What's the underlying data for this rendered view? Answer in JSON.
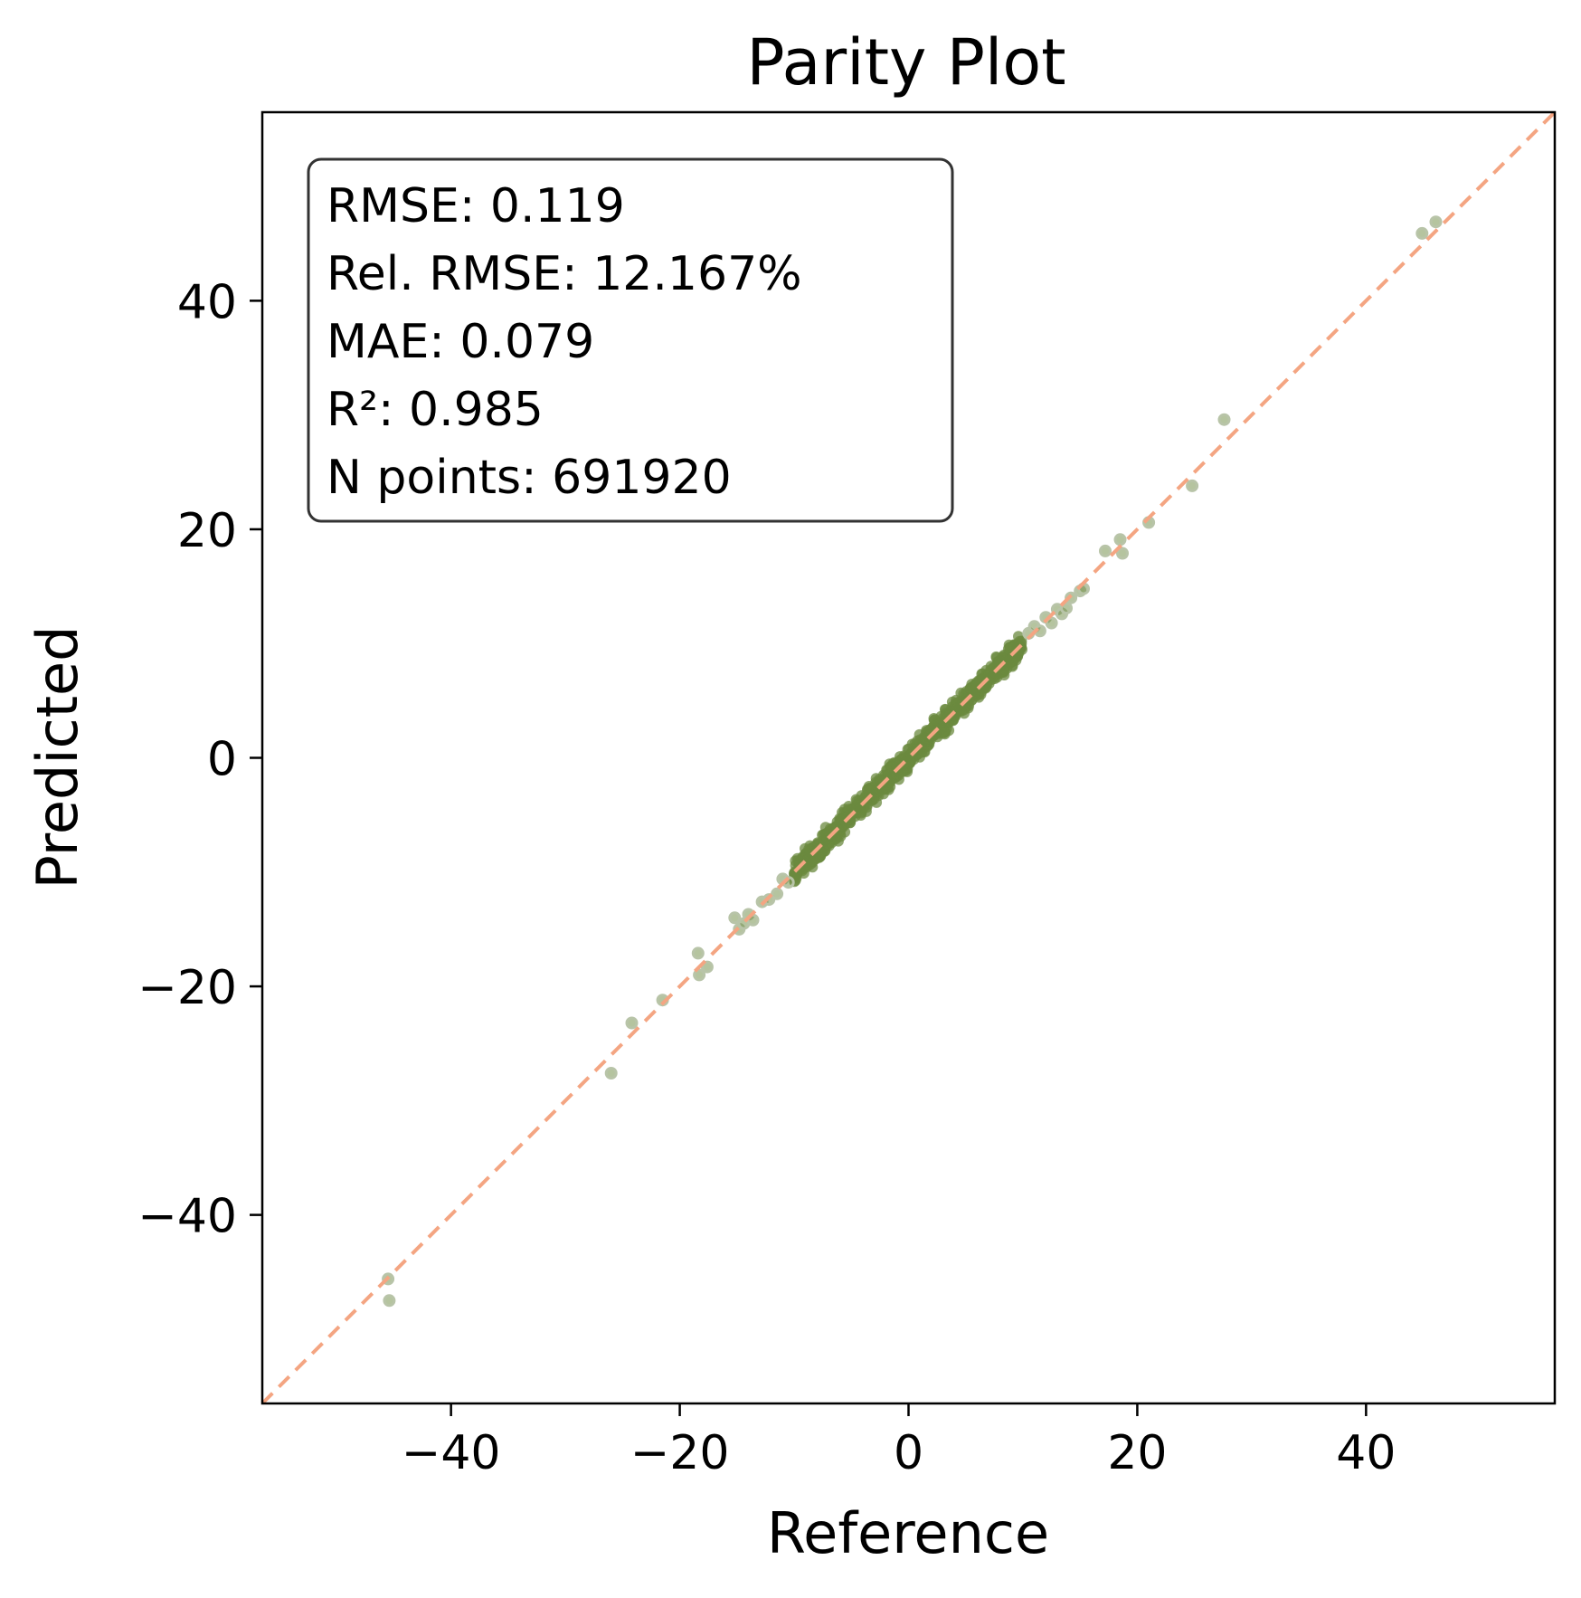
{
  "chart_data": {
    "type": "scatter",
    "title": "Parity Plot",
    "xlabel": "Reference",
    "ylabel": "Predicted",
    "xlim": [
      -56.5,
      56.5
    ],
    "ylim": [
      -56.5,
      56.5
    ],
    "xticks": [
      -40,
      -20,
      0,
      20,
      40
    ],
    "yticks": [
      -40,
      -20,
      0,
      20,
      40
    ],
    "xtick_labels": [
      "−40",
      "−20",
      "0",
      "20",
      "40"
    ],
    "ytick_labels": [
      "−40",
      "−20",
      "0",
      "20",
      "40"
    ],
    "grid": false,
    "stats_box_position": "top-left",
    "stats_lines": [
      "RMSE: 0.119",
      "Rel. RMSE: 12.167%",
      "MAE: 0.079",
      "R²: 0.985",
      "N points: 691920"
    ],
    "reference_line": {
      "style": "dashed",
      "color": "#f4a582",
      "from": [
        -56.5,
        -56.5
      ],
      "to": [
        56.5,
        56.5
      ]
    },
    "point_color": "#6b8a3f",
    "point_edge_color": "#b8c4a8",
    "dense_cluster": {
      "x_range": [
        -10,
        10
      ],
      "slope": 1.0,
      "spread": 0.45
    },
    "points": [
      {
        "x": -45.5,
        "y": -45.6
      },
      {
        "x": -45.4,
        "y": -47.5
      },
      {
        "x": -26.0,
        "y": -27.6
      },
      {
        "x": -24.2,
        "y": -23.2
      },
      {
        "x": -21.5,
        "y": -21.2
      },
      {
        "x": -18.4,
        "y": -17.1
      },
      {
        "x": -18.3,
        "y": -19.0
      },
      {
        "x": -17.6,
        "y": -18.3
      },
      {
        "x": -15.2,
        "y": -14.0
      },
      {
        "x": -14.8,
        "y": -15.0
      },
      {
        "x": -14.4,
        "y": -14.5
      },
      {
        "x": -14.0,
        "y": -13.7
      },
      {
        "x": -13.6,
        "y": -14.2
      },
      {
        "x": -12.8,
        "y": -12.6
      },
      {
        "x": -12.2,
        "y": -12.4
      },
      {
        "x": -11.5,
        "y": -11.9
      },
      {
        "x": -11.0,
        "y": -10.6
      },
      {
        "x": -10.5,
        "y": -10.9
      },
      {
        "x": 10.5,
        "y": 10.9
      },
      {
        "x": 11.0,
        "y": 11.5
      },
      {
        "x": 11.5,
        "y": 11.1
      },
      {
        "x": 12.0,
        "y": 12.3
      },
      {
        "x": 12.5,
        "y": 11.8
      },
      {
        "x": 13.0,
        "y": 13.0
      },
      {
        "x": 13.4,
        "y": 12.6
      },
      {
        "x": 13.8,
        "y": 13.1
      },
      {
        "x": 14.2,
        "y": 14.0
      },
      {
        "x": 15.0,
        "y": 14.6
      },
      {
        "x": 15.3,
        "y": 14.8
      },
      {
        "x": 17.2,
        "y": 18.1
      },
      {
        "x": 18.5,
        "y": 19.1
      },
      {
        "x": 18.7,
        "y": 17.9
      },
      {
        "x": 21.0,
        "y": 20.6
      },
      {
        "x": 24.8,
        "y": 23.8
      },
      {
        "x": 27.6,
        "y": 29.6
      },
      {
        "x": 44.9,
        "y": 45.9
      },
      {
        "x": 46.1,
        "y": 46.9
      }
    ]
  }
}
